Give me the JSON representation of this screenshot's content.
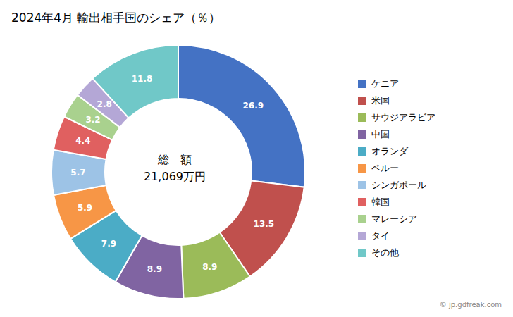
{
  "chart_data": {
    "type": "pie",
    "title": "2024年4月 輸出相手国のシェア（％）",
    "categories": [
      "ケニア",
      "米国",
      "サウジアラビア",
      "中国",
      "オランダ",
      "ペルー",
      "シンガポール",
      "韓国",
      "マレーシア",
      "タイ",
      "その他"
    ],
    "values": [
      26.9,
      13.5,
      8.9,
      8.9,
      7.9,
      5.9,
      5.7,
      4.4,
      3.2,
      2.8,
      11.8
    ],
    "colors": [
      "#4472C4",
      "#C0504D",
      "#9BBB59",
      "#8064A2",
      "#4BACC6",
      "#F79646",
      "#9DC3E6",
      "#E06060",
      "#A9D18E",
      "#B4A7D6",
      "#70C8C8"
    ],
    "data_labels": true,
    "legend": "right",
    "annotations": [
      "総　額",
      "21,069万円",
      "© jp.gdfreak.com"
    ]
  }
}
